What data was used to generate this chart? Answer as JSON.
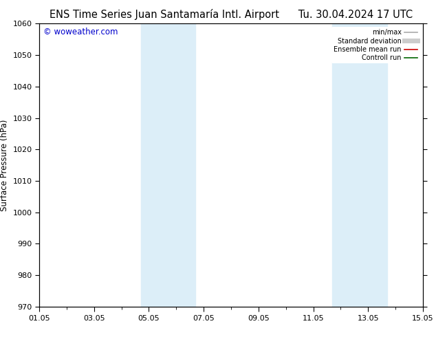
{
  "title_left": "ENS Time Series Juan Santamaría Intl. Airport",
  "title_right": "Tu. 30.04.2024 17 UTC",
  "ylabel": "Surface Pressure (hPa)",
  "watermark": "© woweather.com",
  "ylim": [
    970,
    1060
  ],
  "yticks": [
    970,
    980,
    990,
    1000,
    1010,
    1020,
    1030,
    1040,
    1050,
    1060
  ],
  "xtick_labels": [
    "01.05",
    "03.05",
    "05.05",
    "07.05",
    "09.05",
    "11.05",
    "13.05",
    "15.05"
  ],
  "xtick_positions": [
    0,
    2,
    4,
    6,
    8,
    10,
    12,
    14
  ],
  "x_num_days": 14,
  "shaded_bands": [
    {
      "x_start": 3.7,
      "x_end": 5.7
    },
    {
      "x_start": 10.7,
      "x_end": 12.7
    }
  ],
  "legend_items": [
    {
      "label": "min/max",
      "color": "#aaaaaa",
      "lw": 1.2,
      "style": "solid"
    },
    {
      "label": "Standard deviation",
      "color": "#cccccc",
      "lw": 5,
      "style": "solid"
    },
    {
      "label": "Ensemble mean run",
      "color": "#cc0000",
      "lw": 1.2,
      "style": "solid"
    },
    {
      "label": "Controll run",
      "color": "#006600",
      "lw": 1.2,
      "style": "solid"
    }
  ],
  "bg_color": "#ffffff",
  "plot_bg_color": "#ffffff",
  "band_color": "#dceef8",
  "title_fontsize": 10.5,
  "tick_fontsize": 8,
  "ylabel_fontsize": 8.5,
  "watermark_fontsize": 8.5,
  "watermark_color": "#0000cc"
}
